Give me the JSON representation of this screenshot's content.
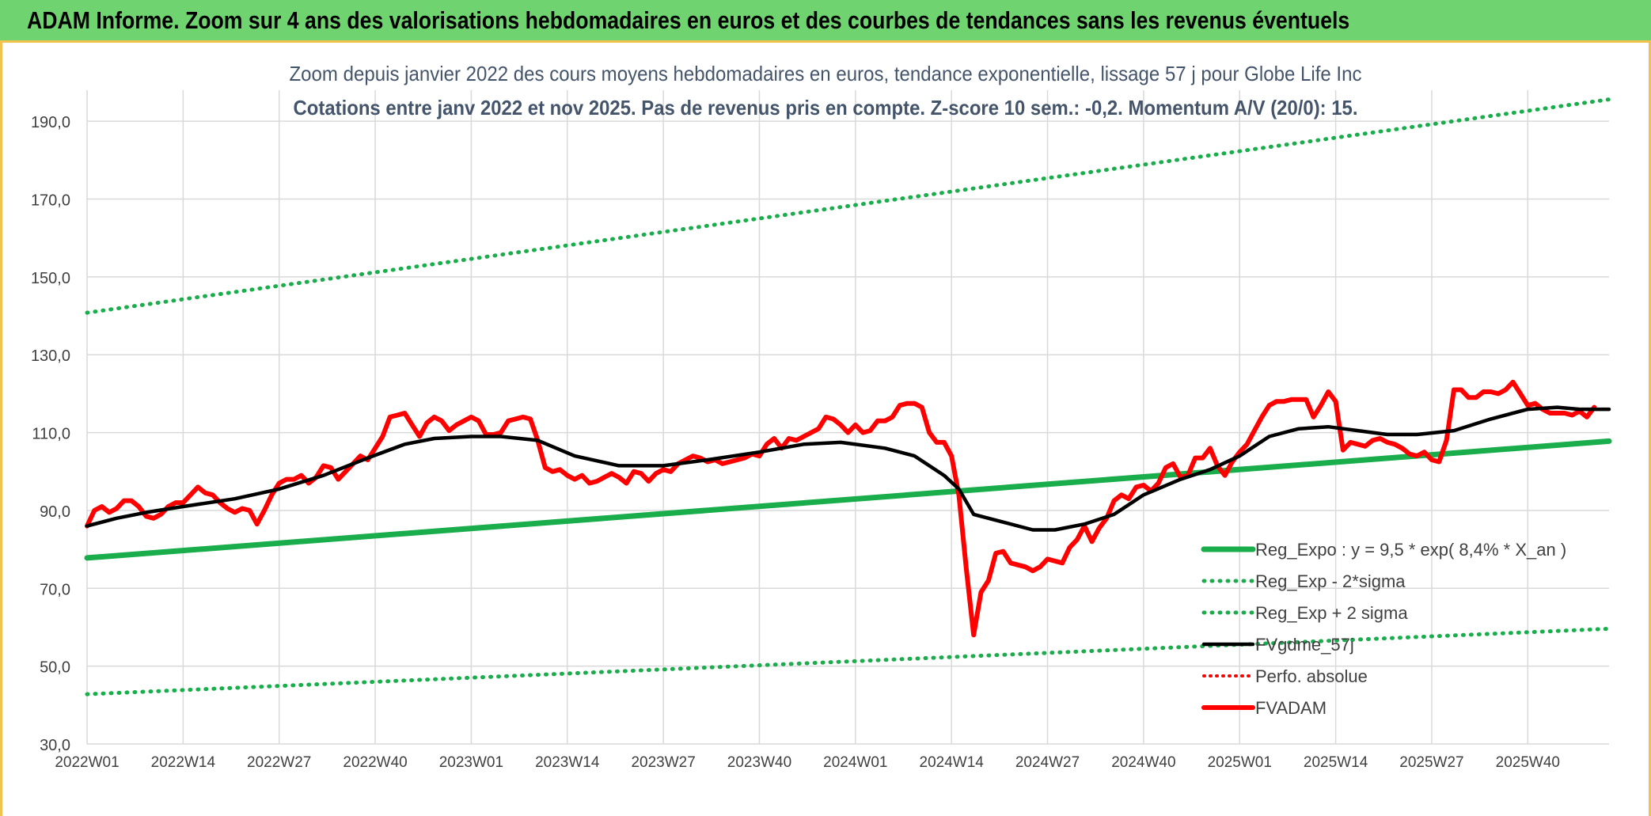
{
  "banner": {
    "title": "ADAM Informe. Zoom sur 4 ans des valorisations hebdomadaires en euros et des courbes de tendances sans les revenus éventuels"
  },
  "colors": {
    "banner_bg": "#6fd46f",
    "banner_border": "#f2c24e",
    "reg_green": "#19ad4c",
    "red": "#ff0000",
    "black": "#000000",
    "grid": "#d9d9d9",
    "text": "#44546a"
  },
  "chart_data": {
    "type": "line",
    "title": "Zoom depuis janvier 2022 des cours moyens hebdomadaires en euros, tendance exponentielle, lissage 57 j pour Globe Life Inc",
    "subtitle": "Cotations entre janv 2022 et nov 2025. Pas de revenus pris en compte. Z-score 10 sem.: -0,2. Momentum A/V (20/0): 15.",
    "xlabel": "",
    "ylabel": "",
    "ylim": [
      30,
      200
    ],
    "y_ticks": [
      "30,0",
      "50,0",
      "70,0",
      "90,0",
      "110,0",
      "130,0",
      "150,0",
      "170,0",
      "190,0"
    ],
    "y_tick_values": [
      30,
      50,
      70,
      90,
      110,
      130,
      150,
      170,
      190
    ],
    "x_ticks": [
      "2022W01",
      "2022W14",
      "2022W27",
      "2022W40",
      "2023W01",
      "2023W14",
      "2023W27",
      "2023W40",
      "2024W01",
      "2024W14",
      "2024W27",
      "2024W40",
      "2025W01",
      "2025W14",
      "2025W27",
      "2025W40"
    ],
    "x_tick_index": [
      0,
      13,
      26,
      39,
      52,
      65,
      78,
      91,
      104,
      117,
      130,
      143,
      156,
      169,
      182,
      195
    ],
    "n_weeks": 207,
    "series": [
      {
        "name": "Reg_Expo : y = 9,5 * exp( 8,4% *  X_an )",
        "style": "solid",
        "color": "#19ad4c",
        "points": [
          [
            0,
            77.8
          ],
          [
            206,
            107.8
          ]
        ]
      },
      {
        "name": "Reg_Exp - 2*sigma",
        "style": "dotted",
        "color": "#19ad4c",
        "points": [
          [
            0,
            42.8
          ],
          [
            206,
            59.6
          ]
        ]
      },
      {
        "name": "Reg_Exp + 2 sigma",
        "style": "dotted",
        "color": "#19ad4c",
        "points": [
          [
            0,
            140.8
          ],
          [
            206,
            195.6
          ]
        ]
      },
      {
        "name": "FVgdme_57j",
        "style": "solid",
        "color": "#000000",
        "points": [
          [
            0,
            86
          ],
          [
            4,
            88
          ],
          [
            8,
            89.5
          ],
          [
            13,
            91
          ],
          [
            20,
            93
          ],
          [
            26,
            95.5
          ],
          [
            32,
            99
          ],
          [
            38,
            103.5
          ],
          [
            43,
            107
          ],
          [
            47,
            108.5
          ],
          [
            52,
            109
          ],
          [
            56,
            109
          ],
          [
            61,
            108
          ],
          [
            66,
            104
          ],
          [
            72,
            101.5
          ],
          [
            78,
            101.5
          ],
          [
            84,
            103
          ],
          [
            91,
            105
          ],
          [
            97,
            107
          ],
          [
            102,
            107.5
          ],
          [
            108,
            106
          ],
          [
            112,
            104
          ],
          [
            116,
            99
          ],
          [
            118,
            95.5
          ],
          [
            120,
            89
          ],
          [
            124,
            87
          ],
          [
            128,
            85
          ],
          [
            131,
            85
          ],
          [
            135,
            86.5
          ],
          [
            139,
            89
          ],
          [
            143,
            94
          ],
          [
            148,
            98
          ],
          [
            152,
            100.5
          ],
          [
            156,
            104
          ],
          [
            160,
            109
          ],
          [
            164,
            111
          ],
          [
            168,
            111.5
          ],
          [
            172,
            110.5
          ],
          [
            176,
            109.5
          ],
          [
            180,
            109.5
          ],
          [
            185,
            110.5
          ],
          [
            190,
            113.5
          ],
          [
            195,
            116
          ],
          [
            199,
            116.5
          ],
          [
            202,
            116
          ],
          [
            206,
            116
          ]
        ]
      },
      {
        "name": "Perfo. absolue",
        "style": "dotted",
        "color": "#ff0000",
        "points": []
      },
      {
        "name": "FVADAM",
        "style": "solid",
        "color": "#ff0000",
        "points": [
          [
            0,
            86
          ],
          [
            1,
            90
          ],
          [
            2,
            91
          ],
          [
            3,
            89.5
          ],
          [
            4,
            90.5
          ],
          [
            5,
            92.5
          ],
          [
            6,
            92.5
          ],
          [
            7,
            91
          ],
          [
            8,
            88.5
          ],
          [
            9,
            88
          ],
          [
            10,
            89
          ],
          [
            11,
            91
          ],
          [
            12,
            92
          ],
          [
            13,
            92
          ],
          [
            14,
            94
          ],
          [
            15,
            96
          ],
          [
            16,
            94.5
          ],
          [
            17,
            94
          ],
          [
            18,
            92
          ],
          [
            19,
            90.5
          ],
          [
            20,
            89.5
          ],
          [
            21,
            90.5
          ],
          [
            22,
            90
          ],
          [
            23,
            86.5
          ],
          [
            24,
            90
          ],
          [
            25,
            94
          ],
          [
            26,
            97
          ],
          [
            27,
            98
          ],
          [
            28,
            98
          ],
          [
            29,
            99
          ],
          [
            30,
            97
          ],
          [
            31,
            98.5
          ],
          [
            32,
            101.5
          ],
          [
            33,
            101
          ],
          [
            34,
            98
          ],
          [
            35,
            100
          ],
          [
            36,
            102
          ],
          [
            37,
            104
          ],
          [
            38,
            103
          ],
          [
            39,
            106
          ],
          [
            40,
            109
          ],
          [
            41,
            114
          ],
          [
            42,
            114.5
          ],
          [
            43,
            115
          ],
          [
            44,
            112
          ],
          [
            45,
            109
          ],
          [
            46,
            112.5
          ],
          [
            47,
            114
          ],
          [
            48,
            113
          ],
          [
            49,
            110.5
          ],
          [
            50,
            112
          ],
          [
            51,
            113
          ],
          [
            52,
            114
          ],
          [
            53,
            113
          ],
          [
            54,
            109.5
          ],
          [
            55,
            109.5
          ],
          [
            56,
            110
          ],
          [
            57,
            113
          ],
          [
            58,
            113.5
          ],
          [
            59,
            114
          ],
          [
            60,
            113.5
          ],
          [
            61,
            108
          ],
          [
            62,
            101
          ],
          [
            63,
            100
          ],
          [
            64,
            100.5
          ],
          [
            65,
            99
          ],
          [
            66,
            98
          ],
          [
            67,
            99
          ],
          [
            68,
            97
          ],
          [
            69,
            97.5
          ],
          [
            70,
            98.5
          ],
          [
            71,
            99.5
          ],
          [
            72,
            98.5
          ],
          [
            73,
            97
          ],
          [
            74,
            100
          ],
          [
            75,
            99.5
          ],
          [
            76,
            97.5
          ],
          [
            77,
            99.5
          ],
          [
            78,
            100.5
          ],
          [
            79,
            100
          ],
          [
            80,
            102
          ],
          [
            81,
            103
          ],
          [
            82,
            104
          ],
          [
            83,
            103.5
          ],
          [
            84,
            102.5
          ],
          [
            85,
            103
          ],
          [
            86,
            102
          ],
          [
            87,
            102.5
          ],
          [
            88,
            103
          ],
          [
            89,
            103.5
          ],
          [
            90,
            104.5
          ],
          [
            91,
            104
          ],
          [
            92,
            107
          ],
          [
            93,
            108.5
          ],
          [
            94,
            106
          ],
          [
            95,
            108.5
          ],
          [
            96,
            108
          ],
          [
            97,
            109
          ],
          [
            98,
            110
          ],
          [
            99,
            111
          ],
          [
            100,
            114
          ],
          [
            101,
            113.5
          ],
          [
            102,
            112
          ],
          [
            103,
            110
          ],
          [
            104,
            112
          ],
          [
            105,
            110
          ],
          [
            106,
            110.5
          ],
          [
            107,
            113
          ],
          [
            108,
            113
          ],
          [
            109,
            114
          ],
          [
            110,
            117
          ],
          [
            111,
            117.5
          ],
          [
            112,
            117.5
          ],
          [
            113,
            116.5
          ],
          [
            114,
            110
          ],
          [
            115,
            107.5
          ],
          [
            116,
            107.5
          ],
          [
            117,
            104
          ],
          [
            118,
            94
          ],
          [
            119,
            75
          ],
          [
            120,
            58
          ],
          [
            121,
            69
          ],
          [
            122,
            72
          ],
          [
            123,
            79
          ],
          [
            124,
            79.5
          ],
          [
            125,
            76.5
          ],
          [
            126,
            76
          ],
          [
            127,
            75.5
          ],
          [
            128,
            74.5
          ],
          [
            129,
            75.5
          ],
          [
            130,
            77.5
          ],
          [
            131,
            77
          ],
          [
            132,
            76.5
          ],
          [
            133,
            80.5
          ],
          [
            134,
            82.5
          ],
          [
            135,
            86
          ],
          [
            136,
            82
          ],
          [
            137,
            85.5
          ],
          [
            138,
            88
          ],
          [
            139,
            92.5
          ],
          [
            140,
            94
          ],
          [
            141,
            93
          ],
          [
            142,
            96
          ],
          [
            143,
            96.5
          ],
          [
            144,
            95
          ],
          [
            145,
            97
          ],
          [
            146,
            101
          ],
          [
            147,
            102
          ],
          [
            148,
            98.5
          ],
          [
            149,
            99
          ],
          [
            150,
            103.5
          ],
          [
            151,
            103.5
          ],
          [
            152,
            106
          ],
          [
            153,
            101.5
          ],
          [
            154,
            99
          ],
          [
            155,
            102.5
          ],
          [
            156,
            105
          ],
          [
            157,
            107
          ],
          [
            158,
            110.5
          ],
          [
            159,
            114
          ],
          [
            160,
            117
          ],
          [
            161,
            118
          ],
          [
            162,
            118
          ],
          [
            163,
            118.5
          ],
          [
            164,
            118.5
          ],
          [
            165,
            118.5
          ],
          [
            166,
            114
          ],
          [
            167,
            117
          ],
          [
            168,
            120.5
          ],
          [
            169,
            118
          ],
          [
            170,
            105.5
          ],
          [
            171,
            107.5
          ],
          [
            172,
            107
          ],
          [
            173,
            106.5
          ],
          [
            174,
            108
          ],
          [
            175,
            108.5
          ],
          [
            176,
            107.5
          ],
          [
            177,
            107
          ],
          [
            178,
            106
          ],
          [
            179,
            104.5
          ],
          [
            180,
            104
          ],
          [
            181,
            105
          ],
          [
            182,
            103
          ],
          [
            183,
            102.5
          ],
          [
            184,
            108
          ],
          [
            185,
            121
          ],
          [
            186,
            121
          ],
          [
            187,
            119
          ],
          [
            188,
            119
          ],
          [
            189,
            120.5
          ],
          [
            190,
            120.5
          ],
          [
            191,
            120
          ],
          [
            192,
            121
          ],
          [
            193,
            123
          ],
          [
            194,
            120
          ],
          [
            195,
            117
          ],
          [
            196,
            117.5
          ],
          [
            197,
            116
          ],
          [
            198,
            115
          ],
          [
            199,
            115
          ],
          [
            200,
            115
          ],
          [
            201,
            114.5
          ],
          [
            202,
            115.5
          ],
          [
            203,
            114
          ],
          [
            204,
            116.5
          ]
        ]
      }
    ],
    "legend": {
      "position": "bottom-right"
    }
  }
}
